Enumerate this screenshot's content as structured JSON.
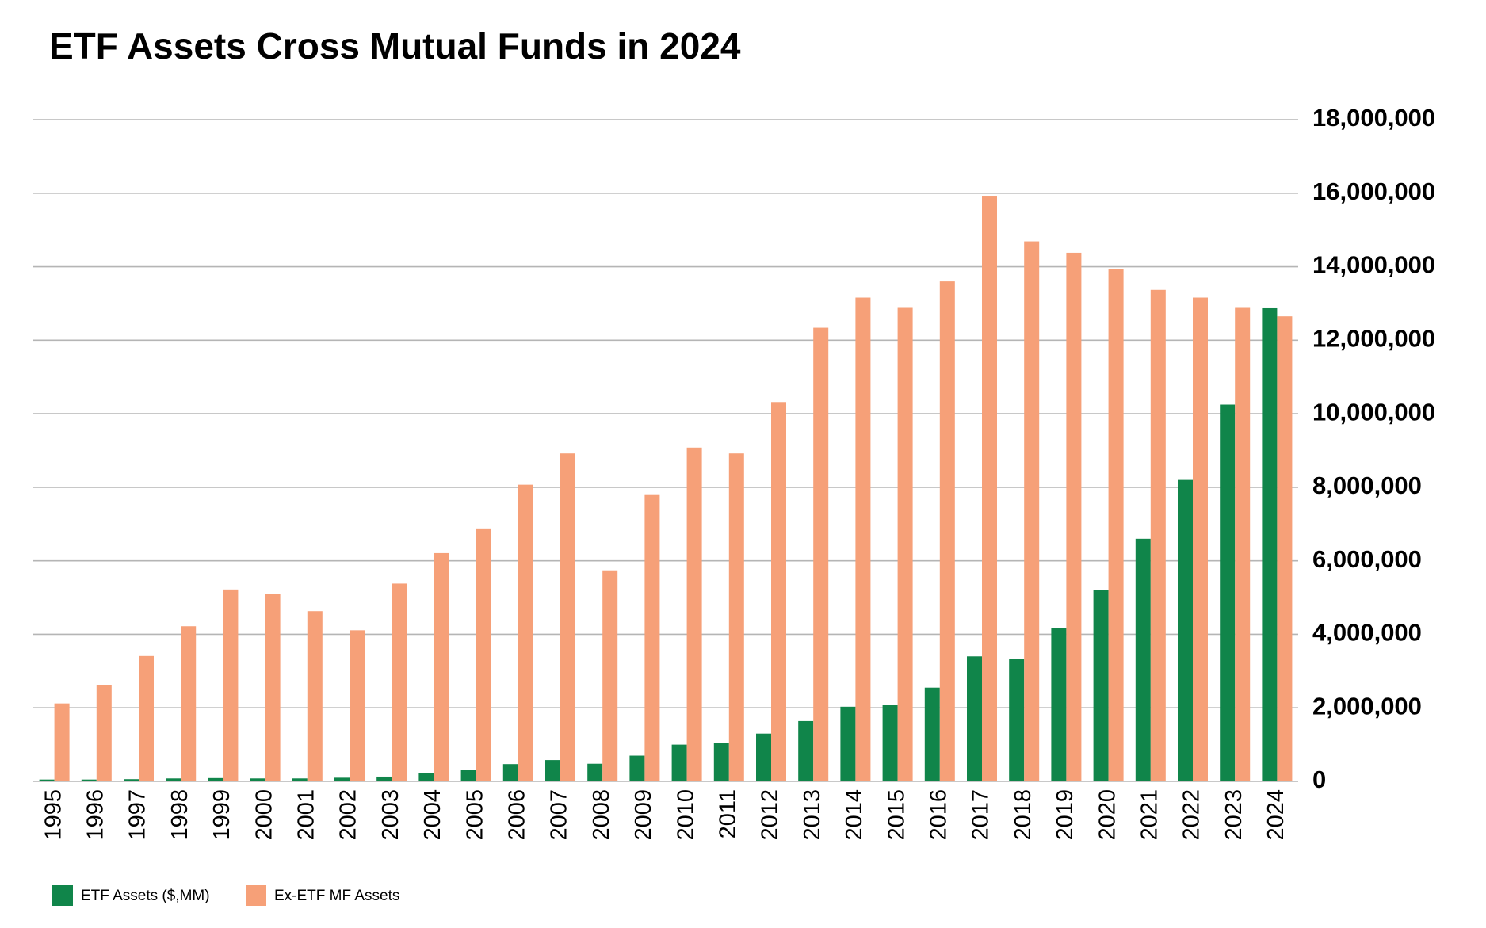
{
  "chart_data": {
    "type": "bar",
    "title": "ETF Assets Cross Mutual Funds in 2024",
    "categories": [
      "1995",
      "1996",
      "1997",
      "1998",
      "1999",
      "2000",
      "2001",
      "2002",
      "2003",
      "2004",
      "2005",
      "2006",
      "2007",
      "2008",
      "2009",
      "2010",
      "2011",
      "2012",
      "2013",
      "2014",
      "2015",
      "2016",
      "2017",
      "2018",
      "2019",
      "2020",
      "2021",
      "2022",
      "2023",
      "2024"
    ],
    "series": [
      {
        "name": "ETF Assets ($,MM)",
        "color": "#10854a",
        "values": [
          50000,
          50000,
          60000,
          80000,
          90000,
          80000,
          80000,
          100000,
          130000,
          220000,
          320000,
          470000,
          580000,
          480000,
          700000,
          1000000,
          1050000,
          1300000,
          1640000,
          2030000,
          2080000,
          2550000,
          3400000,
          3320000,
          4180000,
          5200000,
          6600000,
          8200000,
          10250000,
          12870000
        ]
      },
      {
        "name": "Ex-ETF MF Assets",
        "color": "#f6a078",
        "values": [
          2120000,
          2610000,
          3410000,
          4220000,
          5220000,
          5090000,
          4630000,
          4110000,
          5380000,
          6210000,
          6880000,
          8070000,
          8920000,
          5740000,
          7810000,
          9080000,
          8920000,
          10320000,
          12340000,
          13160000,
          12880000,
          13600000,
          15930000,
          14690000,
          14380000,
          13940000,
          13370000,
          13160000,
          12880000,
          12650000
        ]
      }
    ],
    "ylim": [
      0,
      18000000
    ],
    "yticks": [
      0,
      {
        "value": 2000000,
        "label": "2,000,000"
      },
      {
        "value": 4000000,
        "label": "4,000,000"
      },
      {
        "value": 6000000,
        "label": "6,000,000"
      },
      {
        "value": 8000000,
        "label": "8,000,000"
      },
      {
        "value": 10000000,
        "label": "10,000,000"
      },
      {
        "value": 12000000,
        "label": "12,000,000"
      },
      {
        "value": 14000000,
        "label": "14,000,000"
      },
      {
        "value": 16000000,
        "label": "16,000,000"
      },
      {
        "value": 18000000,
        "label": "18,000,000"
      }
    ],
    "grid": true,
    "legend": "bottom-left"
  }
}
